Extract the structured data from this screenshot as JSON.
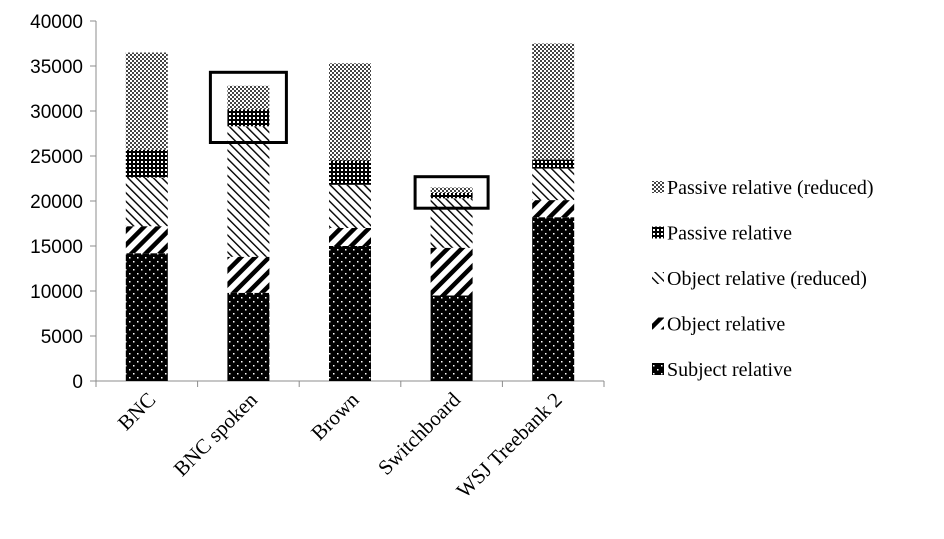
{
  "chart_data": {
    "type": "bar",
    "stacked": true,
    "title": "",
    "xlabel": "",
    "ylabel": "",
    "ylim": [
      0,
      40000
    ],
    "yticks": [
      0,
      5000,
      10000,
      15000,
      20000,
      25000,
      30000,
      35000,
      40000
    ],
    "grid": false,
    "legend_position": "right",
    "categories": [
      "BNC",
      "BNC spoken",
      "Brown",
      "Switchboard",
      "WSJ Treebank 2"
    ],
    "series": [
      {
        "name": "Subject relative",
        "pattern": "dots-on-black",
        "values": [
          14200,
          9800,
          15000,
          9500,
          18200
        ]
      },
      {
        "name": "Object relative",
        "pattern": "wide-diagonal",
        "values": [
          3000,
          4000,
          2000,
          5300,
          1900
        ]
      },
      {
        "name": "Object relative (reduced)",
        "pattern": "thin-diagonal",
        "values": [
          5400,
          14500,
          4800,
          5500,
          3500
        ]
      },
      {
        "name": "Passive relative",
        "pattern": "dense-grid",
        "values": [
          3100,
          1900,
          2700,
          600,
          1000
        ]
      },
      {
        "name": "Passive relative (reduced)",
        "pattern": "checker",
        "values": [
          10800,
          2600,
          10800,
          600,
          12900
        ]
      }
    ],
    "highlight_boxes": [
      {
        "category": "BNC spoken",
        "y_range": [
          26500,
          34300
        ]
      },
      {
        "category": "Switchboard",
        "y_range": [
          19200,
          22700
        ]
      }
    ]
  }
}
